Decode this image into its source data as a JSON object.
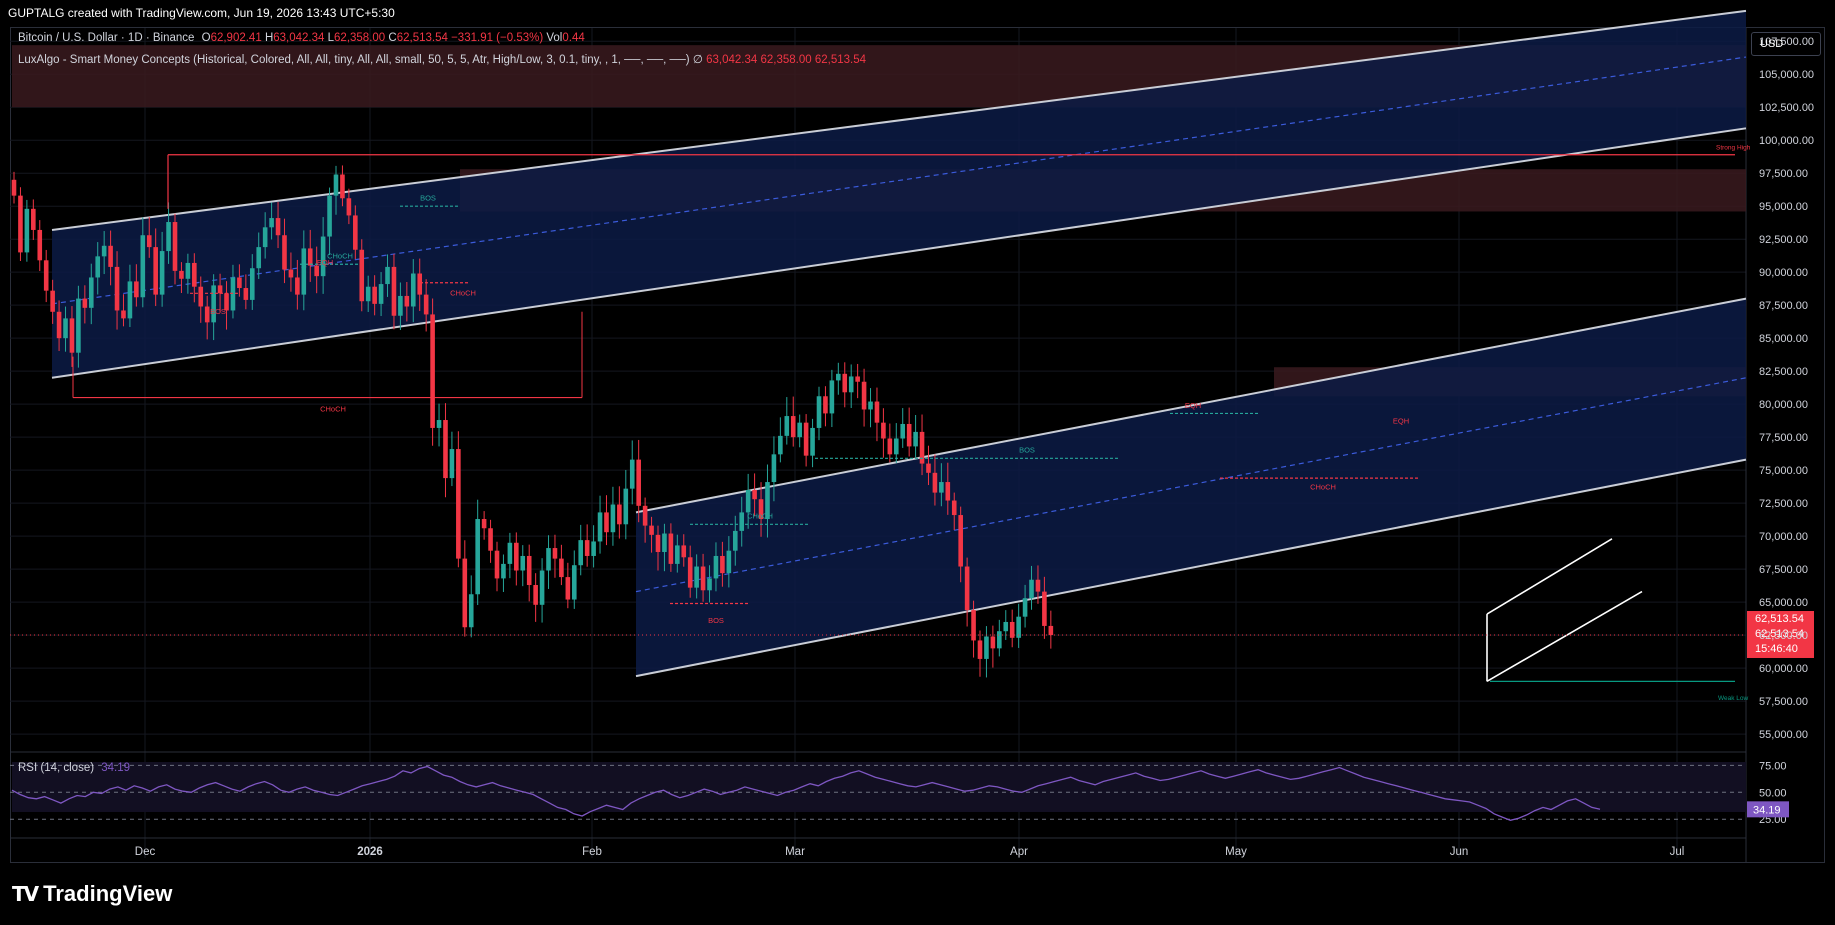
{
  "header": {
    "credit": "GUPTALG created with TradingView.com, Jun 19, 2026 13:43 UTC+5:30"
  },
  "legend": {
    "symbol": "Bitcoin / U.S. Dollar · 1D · Binance",
    "o_label": "O",
    "open": "62,902.41",
    "h_label": "H",
    "high": "63,042.34",
    "l_label": "L",
    "low": "62,358.00",
    "c_label": "C",
    "close": "62,513.54",
    "change": "−331.91 (−0.53%)",
    "vol_label": "Vol",
    "volume": "0.44",
    "indicator": "LuxAlgo - Smart Money Concepts (Historical, Colored, All, All, tiny, All, All, small, 50, 5, 5, Atr, High/Low, 3, 0.1, tiny, , 1, ──, ──, ──)",
    "ind_v1": "63,042.34",
    "ind_v2": "62,358.00",
    "ind_v3": "62,513.54"
  },
  "currency": "USD",
  "rsi": {
    "label": "RSI (14, close)",
    "value": "34.19",
    "ticks": [
      "75.00",
      "50.00",
      "25.00"
    ],
    "current": 34.19,
    "values": [
      52,
      48,
      45,
      44,
      46,
      43,
      40,
      44,
      47,
      46,
      50,
      49,
      53,
      55,
      52,
      56,
      54,
      51,
      55,
      57,
      53,
      51,
      50,
      54,
      57,
      59,
      56,
      53,
      51,
      55,
      58,
      60,
      57,
      52,
      50,
      53,
      55,
      52,
      50,
      48,
      47,
      50,
      53,
      56,
      58,
      60,
      62,
      65,
      70,
      68,
      72,
      74,
      70,
      66,
      64,
      60,
      57,
      55,
      57,
      59,
      56,
      54,
      52,
      50,
      48,
      44,
      40,
      36,
      34,
      30,
      28,
      32,
      35,
      38,
      36,
      34,
      40,
      44,
      47,
      50,
      52,
      48,
      45,
      47,
      50,
      53,
      51,
      48,
      50,
      52,
      55,
      53,
      51,
      49,
      47,
      50,
      52,
      55,
      58,
      56,
      60,
      63,
      65,
      68,
      70,
      67,
      64,
      62,
      60,
      58,
      56,
      55,
      57,
      59,
      57,
      55,
      53,
      51,
      52,
      54,
      56,
      55,
      53,
      51,
      50,
      53,
      56,
      58,
      60,
      62,
      64,
      61,
      59,
      57,
      60,
      62,
      64,
      66,
      68,
      65,
      63,
      61,
      62,
      64,
      66,
      68,
      70,
      67,
      65,
      63,
      65,
      67,
      69,
      71,
      68,
      66,
      64,
      62,
      63,
      65,
      67,
      69,
      71,
      73,
      70,
      67,
      64,
      62,
      60,
      58,
      56,
      54,
      52,
      50,
      48,
      46,
      44,
      43,
      42,
      41,
      38,
      35,
      30,
      27,
      24,
      26,
      29,
      33,
      36,
      34,
      38,
      42,
      44,
      40,
      36,
      34.19
    ]
  },
  "chart_data": {
    "type": "candlestick",
    "title": "Bitcoin / U.S. Dollar · 1D · Binance",
    "xlabel": "",
    "ylabel": "",
    "x_ticks": [
      "Dec",
      "2026",
      "Feb",
      "Mar",
      "Apr",
      "May",
      "Jun",
      "Jul"
    ],
    "y_ticks": [
      "107,500.00",
      "105,000.00",
      "102,500.00",
      "100,000.00",
      "97,500.00",
      "95,000.00",
      "92,500.00",
      "90,000.00",
      "87,500.00",
      "85,000.00",
      "82,500.00",
      "80,000.00",
      "77,500.00",
      "75,000.00",
      "72,500.00",
      "70,000.00",
      "67,500.00",
      "65,000.00",
      "62,500.00",
      "60,000.00",
      "57,500.00",
      "55,000.00"
    ],
    "ylim": [
      53800,
      108500
    ],
    "last_price": "62,513.54",
    "countdown": "15:46:40",
    "grid": true,
    "closes": [
      95800,
      91500,
      94800,
      93200,
      90900,
      88600,
      87000,
      85000,
      86500,
      83900,
      88000,
      87300,
      89600,
      91200,
      92000,
      90400,
      87100,
      86500,
      89300,
      88100,
      92800,
      91900,
      88300,
      91600,
      93800,
      90100,
      89500,
      90700,
      88900,
      87400,
      86200,
      89000,
      88400,
      87100,
      89600,
      88800,
      87900,
      90300,
      91900,
      93400,
      94100,
      92800,
      90200,
      89600,
      88300,
      91800,
      90500,
      89700,
      92700,
      95800,
      97400,
      95600,
      94300,
      91700,
      87800,
      88900,
      87600,
      89100,
      90400,
      86700,
      88200,
      87400,
      89900,
      88300,
      86800,
      78200,
      78800,
      74400,
      76600,
      68300,
      63100,
      65600,
      71300,
      70600,
      68900,
      66800,
      67900,
      69500,
      67400,
      68500,
      66300,
      64800,
      67400,
      69100,
      68300,
      66900,
      65200,
      67800,
      69700,
      68500,
      69600,
      71800,
      70300,
      72400,
      70900,
      73600,
      75800,
      72300,
      70800,
      70100,
      68800,
      70200,
      67900,
      69300,
      68400,
      66100,
      67700,
      65900,
      66800,
      68500,
      67200,
      68900,
      70400,
      71800,
      73500,
      72800,
      71300,
      74100,
      76200,
      77600,
      79100,
      77500,
      78600,
      76100,
      78200,
      80600,
      79300,
      81800,
      82300,
      80900,
      82100,
      81700,
      79600,
      80200,
      78600,
      77400,
      76200,
      77400,
      78500,
      76800,
      77900,
      75500,
      74800,
      73300,
      74100,
      72700,
      71600,
      67700,
      64400,
      62100,
      60700,
      62400,
      61500,
      62800,
      63500,
      62300,
      63900,
      65300,
      66700,
      65800,
      63200,
      62513.54
    ]
  },
  "annotations": {
    "bos": "BOS",
    "choch": "CHoCH",
    "eqh": "EQH",
    "strong_high": "Strong High",
    "weak_low": "Weak Low"
  },
  "branding": {
    "logo_text": "TradingView"
  },
  "colors": {
    "up": "#26a69a",
    "down": "#f23645",
    "channel_fill": "#0c1b45",
    "supply_zone": "#3a1a1f",
    "rsi_line": "#7e57c2",
    "accent_bear": "#f23645",
    "accent_bull": "#089981"
  }
}
